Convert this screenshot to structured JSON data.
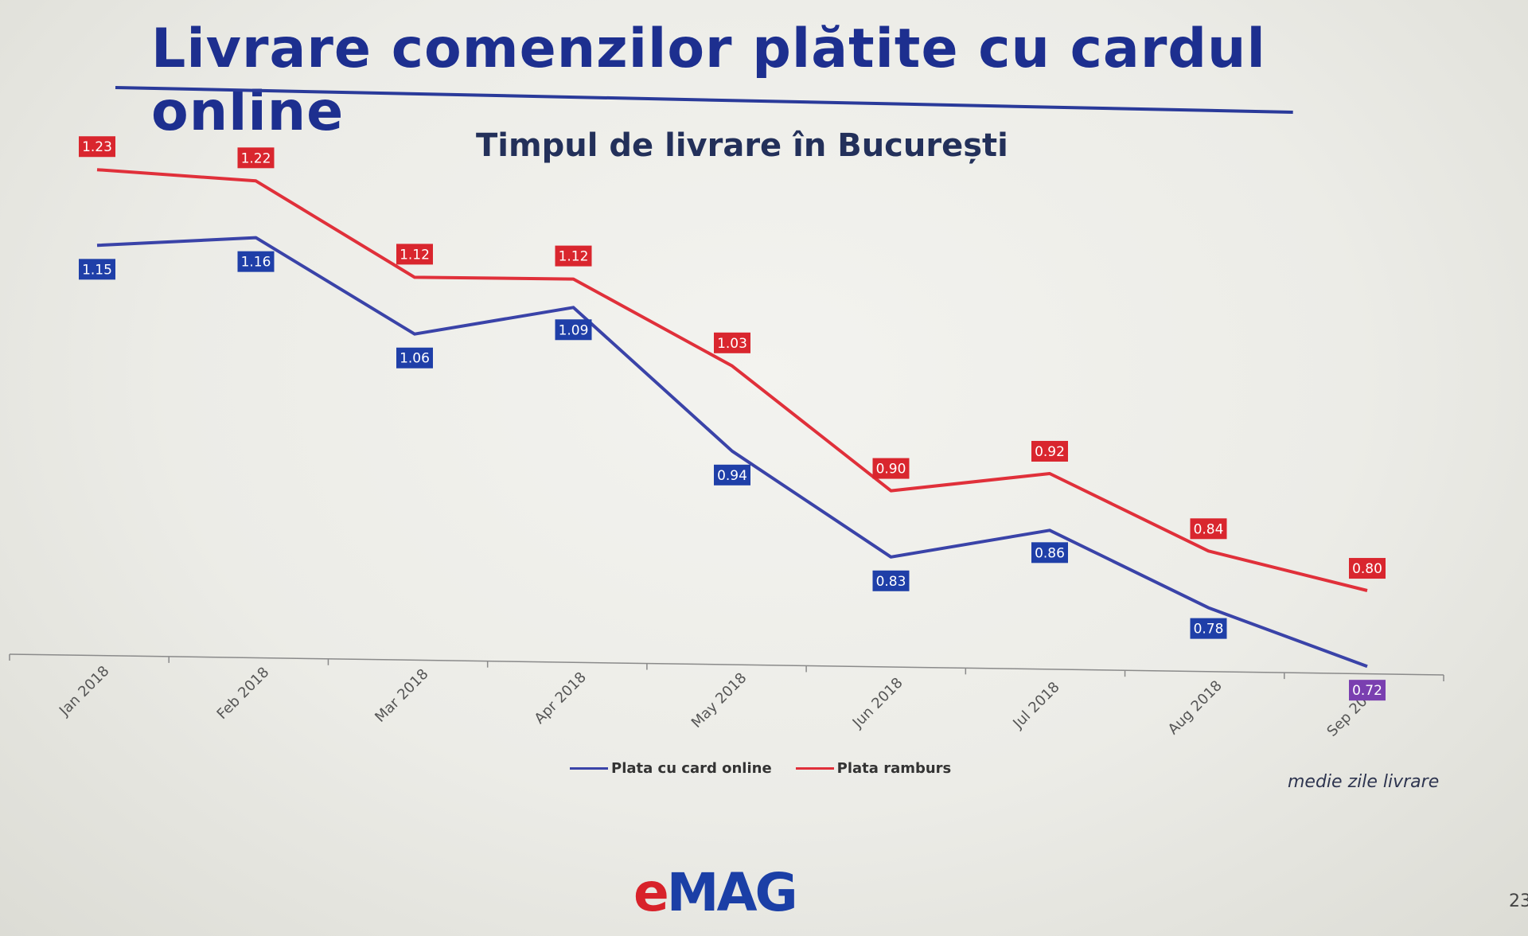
{
  "slide": {
    "title": "Livrare comenzilor plătite cu cardul online",
    "note": "medie zile livrare",
    "page_number": "23",
    "logo": {
      "e": "e",
      "mag": "MAG"
    }
  },
  "chart_data": {
    "type": "line",
    "title": "Timpul de livrare în București",
    "xlabel": "",
    "ylabel": "",
    "categories": [
      "Jan 2018",
      "Feb 2018",
      "Mar 2018",
      "Apr 2018",
      "May 2018",
      "Jun 2018",
      "Jul 2018",
      "Aug 2018",
      "Sep 2018"
    ],
    "series": [
      {
        "name": "Plata cu card online",
        "color": "#3a43a8",
        "label_color": "#1f3fa8",
        "values": [
          1.15,
          1.16,
          1.06,
          1.09,
          0.94,
          0.83,
          0.86,
          0.78,
          0.72
        ]
      },
      {
        "name": "Plata ramburs",
        "color": "#e0303a",
        "label_color": "#d9262e",
        "values": [
          1.23,
          1.22,
          1.12,
          1.12,
          1.03,
          0.9,
          0.92,
          0.84,
          0.8
        ]
      }
    ],
    "ylim": [
      0.4,
      1.3
    ],
    "grid": false,
    "legend": "bottom-center",
    "data_labels": true
  }
}
